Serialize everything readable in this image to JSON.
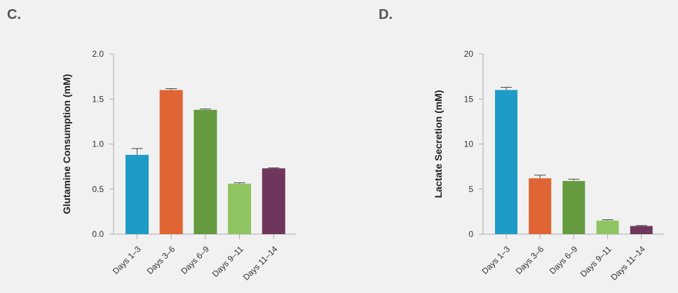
{
  "panels": {
    "c": {
      "label": "C."
    },
    "d": {
      "label": "D."
    }
  },
  "colors": {
    "Days 1–3": "#1e9bc6",
    "Days 3–6": "#e06535",
    "Days 6–9": "#649b3f",
    "Days 9–11": "#8ec461",
    "Days 11–14": "#6e365d",
    "axis": "#aaaaaa",
    "error_bar": "#444444"
  },
  "chart_data": [
    {
      "type": "bar",
      "title": "",
      "xlabel": "",
      "ylabel": "Glutamine Consumption (mM)",
      "categories": [
        "Days 1–3",
        "Days 3–6",
        "Days 6–9",
        "Days 9–11",
        "Days 11–14"
      ],
      "values": [
        0.88,
        1.6,
        1.38,
        0.56,
        0.73
      ],
      "errors": [
        0.07,
        0.015,
        0.01,
        0.01,
        0.005
      ],
      "ylim": [
        0,
        2.0
      ],
      "yticks": [
        "0.0",
        "0.5",
        "1.0",
        "1.5",
        "2.0"
      ],
      "grid": false
    },
    {
      "type": "bar",
      "title": "",
      "xlabel": "",
      "ylabel": "Lactate Secretion (mM)",
      "categories": [
        "Days 1–3",
        "Days 3–6",
        "Days 6–9",
        "Days 9–11",
        "Days 11–14"
      ],
      "values": [
        16.0,
        6.2,
        5.9,
        1.5,
        0.9
      ],
      "errors": [
        0.3,
        0.35,
        0.2,
        0.1,
        0.05
      ],
      "ylim": [
        0,
        20
      ],
      "yticks": [
        "0",
        "5",
        "10",
        "15",
        "20"
      ],
      "grid": false
    }
  ]
}
